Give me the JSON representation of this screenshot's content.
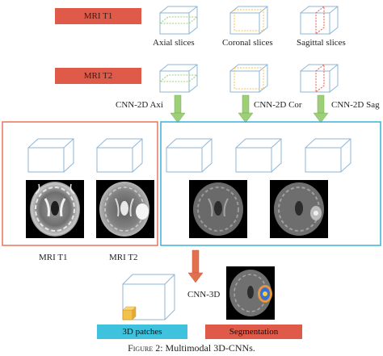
{
  "labels": {
    "mri_t1_top": "MRI T1",
    "mri_t2_top": "MRI T2",
    "axial": "Axial slices",
    "coronal": "Coronal slices",
    "sagittal": "Sagittal slices",
    "cnn_axi": "CNN-2D Axi",
    "cnn_cor": "CNN-2D Cor",
    "cnn_sag": "CNN-2D Sag",
    "mri_t1_bottom": "MRI T1",
    "mri_t2_bottom": "MRI T2",
    "cnn3d": "CNN-3D",
    "patches": "3D patches",
    "segmentation": "Segmentation"
  },
  "caption": {
    "figure": "Figure 2",
    "text": ": Multimodal 3D-CNNs."
  },
  "colors": {
    "red_label": "#e05a4a",
    "cyan_label": "#3fc2dd",
    "left_panel_border": "#e8735f",
    "right_panel_border": "#3ab2d8",
    "cube_stroke": "#8fb5d6",
    "green_arrow": "#9ccf78",
    "orange_arrow": "#e2704f"
  }
}
